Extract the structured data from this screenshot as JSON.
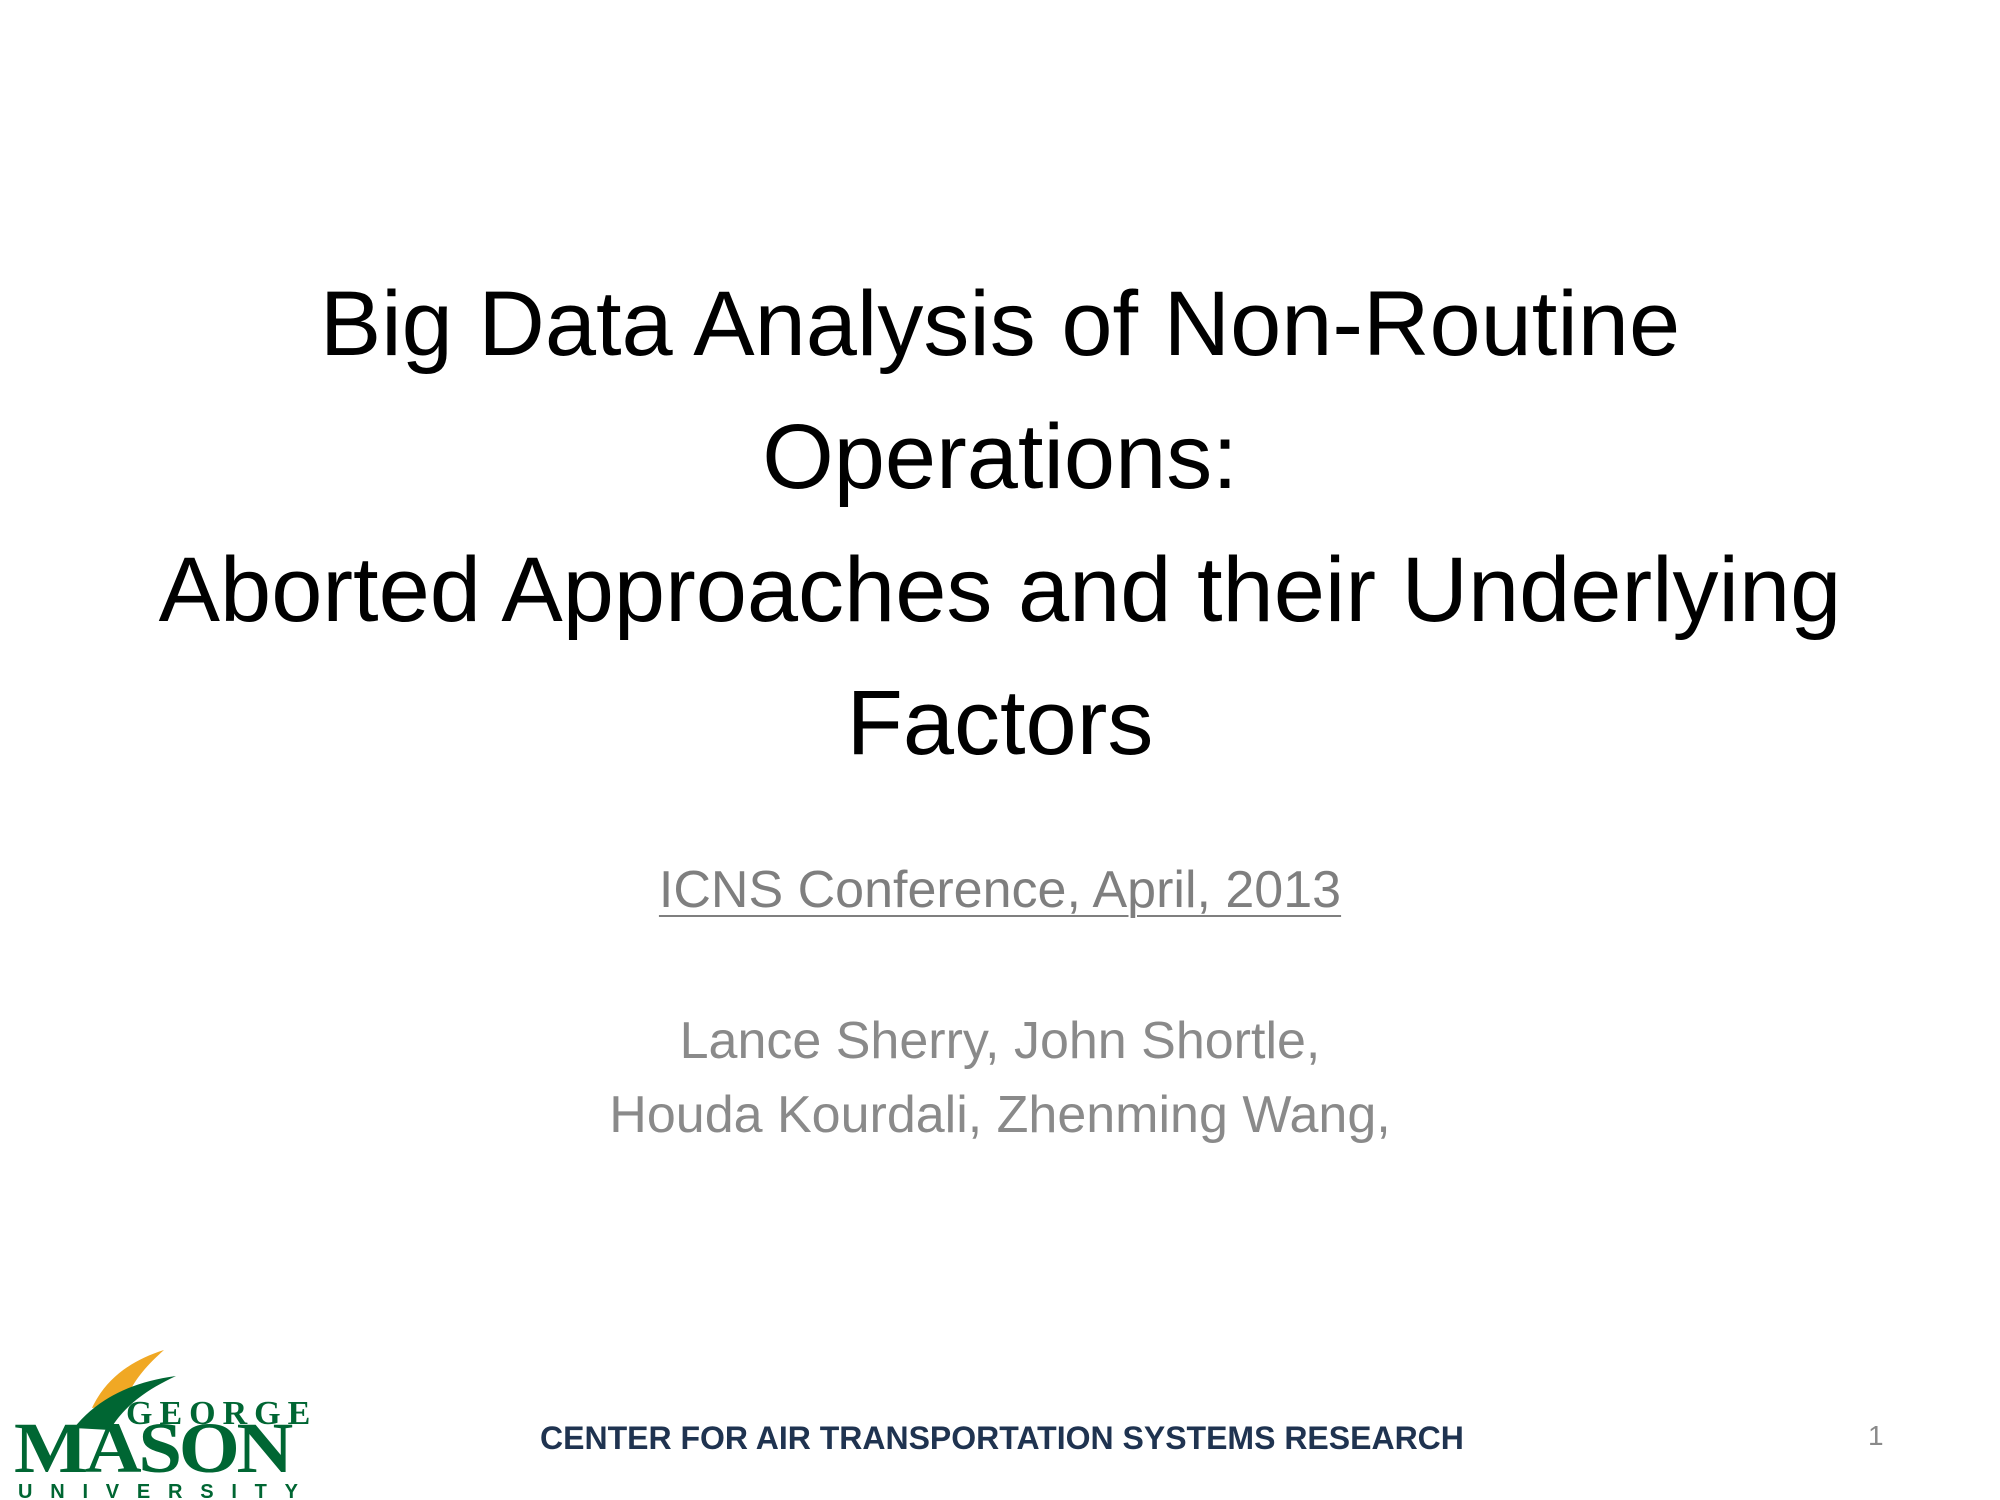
{
  "slide": {
    "title_lines": [
      "Big Data Analysis of Non-Routine",
      "Operations:",
      "Aborted Approaches and their Underlying",
      "Factors"
    ],
    "conference_link": "ICNS Conference, April, 2013",
    "author_lines": [
      "Lance Sherry, John Shortle,",
      "Houda Kourdali, Zhenming Wang,"
    ],
    "footer": "CENTER FOR AIR TRANSPORTATION SYSTEMS RESEARCH",
    "page_number": "1"
  },
  "logo": {
    "line1": "GEORGE",
    "line2": "MASON",
    "line3": "UNIVERSITY",
    "colors": {
      "green": "#006633",
      "gold": "#f0a824"
    }
  }
}
